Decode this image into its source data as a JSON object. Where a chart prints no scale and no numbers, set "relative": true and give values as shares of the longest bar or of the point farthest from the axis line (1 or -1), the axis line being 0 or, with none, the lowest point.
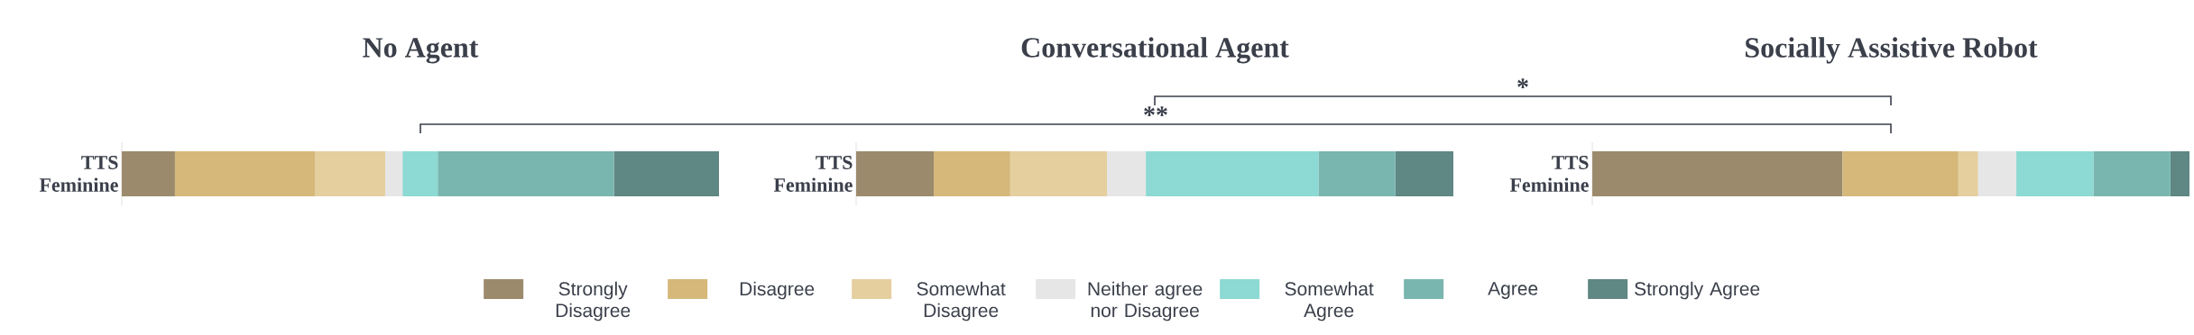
{
  "chart_data": [
    {
      "type": "bar",
      "orientation": "horizontal",
      "stacked": true,
      "relative": true,
      "title": "No Agent",
      "categories": [
        "TTS Feminine"
      ],
      "legend": "bottom",
      "annotations": [
        "**"
      ],
      "series": [
        {
          "name": "Strongly Disagree",
          "color": "#9b8b6c",
          "values": [
            0.089
          ]
        },
        {
          "name": "Disagree",
          "color": "#d5b87a",
          "values": [
            0.235
          ]
        },
        {
          "name": "Somewhat Disagree",
          "color": "#e5cf9f",
          "values": [
            0.117
          ]
        },
        {
          "name": "Neither agree nor Disagree",
          "color": "#e6e6e6",
          "values": [
            0.029
          ]
        },
        {
          "name": "Somewhat Agree",
          "color": "#8dd9d3",
          "values": [
            0.059
          ]
        },
        {
          "name": "Agree",
          "color": "#79b6b0",
          "values": [
            0.295
          ]
        },
        {
          "name": "Strongly Agree",
          "color": "#5f8783",
          "values": [
            0.176
          ]
        }
      ]
    },
    {
      "type": "bar",
      "orientation": "horizontal",
      "stacked": true,
      "relative": true,
      "title": "Conversational Agent",
      "categories": [
        "TTS Feminine"
      ],
      "annotations": [
        "*"
      ],
      "series": [
        {
          "color": "#9b8b6c",
          "values": [
            0.13
          ]
        },
        {
          "color": "#d5b87a",
          "values": [
            0.128
          ]
        },
        {
          "color": "#e5cf9f",
          "values": [
            0.162
          ]
        },
        {
          "color": "#e6e6e6",
          "values": [
            0.065
          ]
        },
        {
          "color": "#8dd9d3",
          "values": [
            0.289
          ]
        },
        {
          "color": "#79b6b0",
          "values": [
            0.129
          ]
        },
        {
          "color": "#5f8783",
          "values": [
            0.097
          ]
        }
      ]
    },
    {
      "type": "bar",
      "orientation": "horizontal",
      "stacked": true,
      "relative": true,
      "title": "Socially Assistive Robot",
      "categories": [
        "TTS Feminine"
      ],
      "series": [
        {
          "color": "#9b8b6c",
          "values": [
            0.419
          ]
        },
        {
          "color": "#d5b87a",
          "values": [
            0.194
          ]
        },
        {
          "color": "#e5cf9f",
          "values": [
            0.033
          ]
        },
        {
          "color": "#e6e6e6",
          "values": [
            0.064
          ]
        },
        {
          "color": "#8dd9d3",
          "values": [
            0.129
          ]
        },
        {
          "color": "#79b6b0",
          "values": [
            0.129
          ]
        },
        {
          "color": "#5f8783",
          "values": [
            0.032
          ]
        }
      ]
    }
  ]
}
